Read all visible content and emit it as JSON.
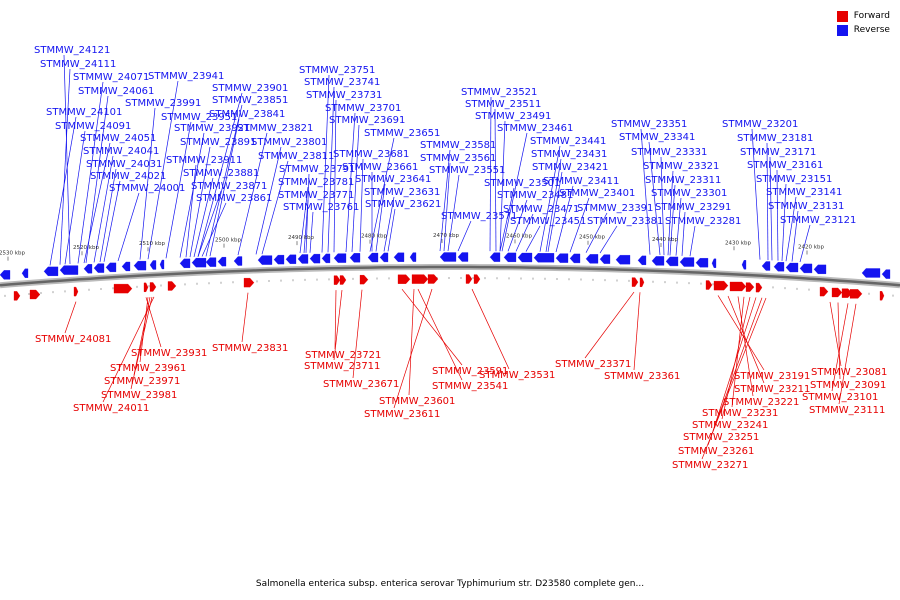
{
  "legend": {
    "forward_label": "Forward",
    "reverse_label": "Reverse",
    "forward_color": "#e60000",
    "reverse_color": "#1414f0"
  },
  "caption": "Salmonella enterica subsp. enterica serovar Typhimurium str. D23580 complete gen...",
  "ticks": [
    "2530 kbp",
    "2520 kbp",
    "2510 kbp",
    "2500 kbp",
    "2490 kbp",
    "2480 kbp",
    "2470 kbp",
    "2460 kbp",
    "2450 kbp",
    "2440 kbp",
    "2430 kbp",
    "2420 kbp"
  ],
  "reverse_labels": [
    "STMMW_24121",
    "STMMW_24111",
    "STMMW_24071",
    "STMMW_24061",
    "STMMW_24101",
    "STMMW_24091",
    "STMMW_24051",
    "STMMW_24041",
    "STMMW_24031",
    "STMMW_24021",
    "STMMW_24001",
    "STMMW_23941",
    "STMMW_23991",
    "STMMW_23901",
    "STMMW_23851",
    "STMMW_23951",
    "STMMW_23841",
    "STMMW_23921",
    "STMMW_23821",
    "STMMW_23891",
    "STMMW_23801",
    "STMMW_23911",
    "STMMW_23811",
    "STMMW_23881",
    "STMMW_23871",
    "STMMW_23861",
    "STMMW_23751",
    "STMMW_23741",
    "STMMW_23731",
    "STMMW_23701",
    "STMMW_23691",
    "STMMW_23651",
    "STMMW_23681",
    "STMMW_23791",
    "STMMW_23661",
    "STMMW_23781",
    "STMMW_23641",
    "STMMW_23771",
    "STMMW_23631",
    "STMMW_23761",
    "STMMW_23621",
    "STMMW_23581",
    "STMMW_23561",
    "STMMW_23551",
    "STMMW_23571",
    "STMMW_23521",
    "STMMW_23511",
    "STMMW_23491",
    "STMMW_23461",
    "STMMW_23441",
    "STMMW_23431",
    "STMMW_23421",
    "STMMW_23501",
    "STMMW_23411",
    "STMMW_23481",
    "STMMW_23401",
    "STMMW_23471",
    "STMMW_23391",
    "STMMW_23451",
    "STMMW_23381",
    "STMMW_23351",
    "STMMW_23341",
    "STMMW_23331",
    "STMMW_23321",
    "STMMW_23311",
    "STMMW_23301",
    "STMMW_23291",
    "STMMW_23281",
    "STMMW_23201",
    "STMMW_23181",
    "STMMW_23171",
    "STMMW_23161",
    "STMMW_23151",
    "STMMW_23141",
    "STMMW_23131",
    "STMMW_23121"
  ],
  "forward_labels": [
    "STMMW_24081",
    "STMMW_23931",
    "STMMW_23961",
    "STMMW_23971",
    "STMMW_23981",
    "STMMW_24011",
    "STMMW_23831",
    "STMMW_23721",
    "STMMW_23711",
    "STMMW_23671",
    "STMMW_23591",
    "STMMW_23541",
    "STMMW_23531",
    "STMMW_23601",
    "STMMW_23611",
    "STMMW_23371",
    "STMMW_23361",
    "STMMW_23191",
    "STMMW_23211",
    "STMMW_23221",
    "STMMW_23231",
    "STMMW_23241",
    "STMMW_23251",
    "STMMW_23261",
    "STMMW_23271",
    "STMMW_23081",
    "STMMW_23091",
    "STMMW_23101",
    "STMMW_23111"
  ]
}
